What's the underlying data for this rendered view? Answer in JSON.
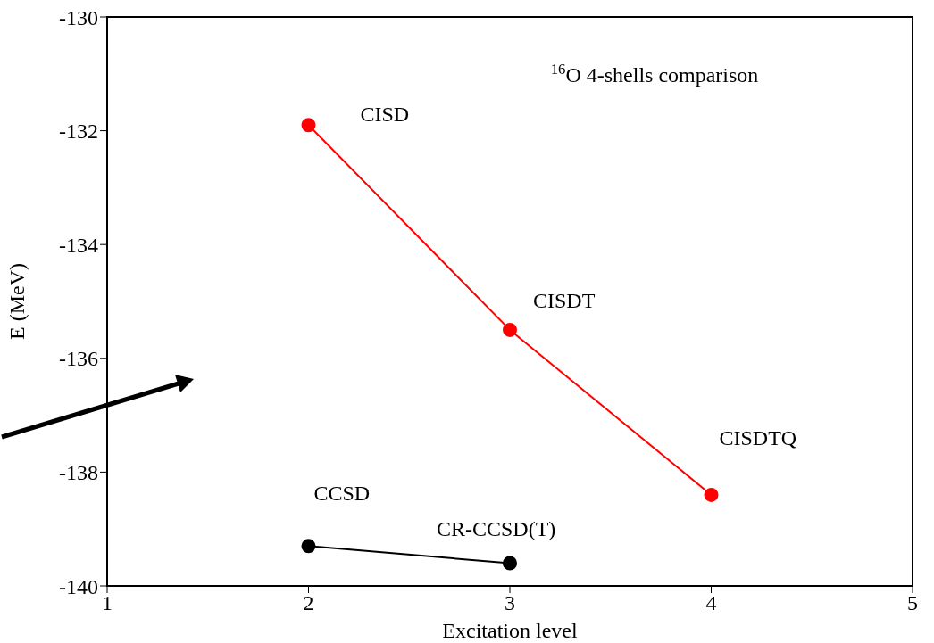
{
  "chart_data": {
    "type": "line",
    "title": "$^{16}$O 4-shells comparison",
    "xlabel": "Excitation level",
    "ylabel": "E (MeV)",
    "series": [
      {
        "color": "#ff0000",
        "x": [
          2,
          3,
          4
        ],
        "values": [
          -131.9,
          -135.5,
          -138.4
        ]
      },
      {
        "color": "#000000",
        "x": [
          2,
          3
        ],
        "values": [
          -139.3,
          -139.6
        ]
      }
    ],
    "annotations": [
      {
        "text": "CISD",
        "x": 2,
        "y": -131.9
      },
      {
        "text": "CISDT",
        "x": 3,
        "y": -135.5
      },
      {
        "text": "CISDTQ",
        "x": 4,
        "y": -138.4
      },
      {
        "text": "CCSD",
        "x": 2,
        "y": -139.3
      },
      {
        "text": "CR-CCSD(T)",
        "x": 3,
        "y": -139.6
      }
    ],
    "xlim": [
      1,
      5
    ],
    "xticks": [
      1,
      2,
      3,
      4,
      5
    ],
    "ylim": [
      -140,
      -130
    ],
    "yticks": [
      -140,
      -138,
      -136,
      -134,
      -132,
      -130
    ],
    "marker": "circle",
    "line_style": "solid",
    "grid": false
  }
}
